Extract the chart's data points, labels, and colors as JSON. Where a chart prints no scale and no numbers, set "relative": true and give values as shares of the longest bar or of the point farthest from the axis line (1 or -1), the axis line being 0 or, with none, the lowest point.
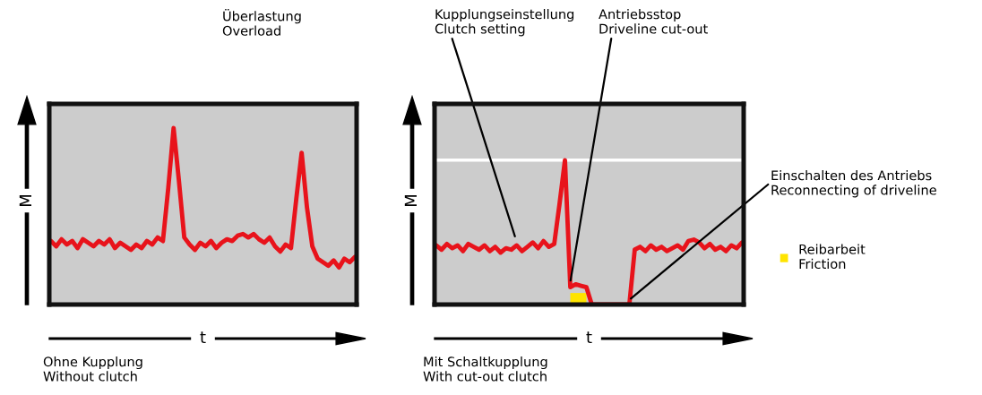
{
  "chart_data": [
    {
      "type": "line",
      "relative": true,
      "xlabel": "t",
      "ylabel": "M",
      "legend": false,
      "categories": [
        null,
        null,
        null,
        null,
        null,
        null,
        null,
        null,
        null,
        null,
        null,
        null,
        null,
        null,
        null,
        null,
        null,
        null,
        null,
        null,
        null,
        null,
        null,
        null,
        null,
        null,
        null,
        null,
        null,
        null,
        null,
        null,
        null,
        null,
        null,
        null,
        null,
        null,
        null,
        null,
        null,
        null,
        null,
        null,
        null,
        null,
        null,
        null,
        null,
        null,
        null,
        null,
        null,
        null,
        null,
        null,
        null,
        null
      ],
      "series": [
        {
          "color": "#e8131b",
          "values": [
            0.36,
            0.33,
            0.37,
            0.34,
            0.36,
            0.32,
            0.37,
            0.35,
            0.33,
            0.36,
            0.34,
            0.37,
            0.32,
            0.35,
            0.33,
            0.31,
            0.34,
            0.32,
            0.36,
            0.34,
            0.38,
            0.36,
            0.66,
            1.0,
            0.7,
            0.38,
            0.34,
            0.31,
            0.35,
            0.33,
            0.36,
            0.32,
            0.35,
            0.37,
            0.36,
            0.39,
            0.4,
            0.38,
            0.4,
            0.37,
            0.35,
            0.38,
            0.33,
            0.3,
            0.34,
            0.32,
            0.6,
            0.86,
            0.55,
            0.33,
            0.26,
            0.24,
            0.22,
            0.25,
            0.21,
            0.26,
            0.24,
            0.27
          ]
        }
      ],
      "annotations": [
        "Überlastung\nOverload",
        "Ohne Kupplung\nWithout clutch"
      ]
    },
    {
      "type": "line",
      "relative": true,
      "xlabel": "t",
      "ylabel": "M",
      "legend": "right",
      "categories": [
        null,
        null,
        null,
        null,
        null,
        null,
        null,
        null,
        null,
        null,
        null,
        null,
        null,
        null,
        null,
        null,
        null,
        null,
        null,
        null,
        null,
        null,
        null,
        null,
        null,
        null,
        null,
        null,
        null,
        null,
        null,
        null,
        null,
        null,
        null,
        null,
        null,
        null,
        null,
        null,
        null,
        null,
        null,
        null,
        null,
        null,
        null,
        null,
        null,
        null,
        null,
        null,
        null,
        null,
        null,
        null,
        null,
        null
      ],
      "series": [
        {
          "type": "area",
          "name": "Reibarbeit\nFriction",
          "color": "#ffe400",
          "values": [
            null,
            null,
            null,
            null,
            null,
            null,
            null,
            null,
            null,
            null,
            null,
            null,
            null,
            null,
            null,
            null,
            null,
            null,
            null,
            null,
            null,
            null,
            null,
            null,
            null,
            0.08,
            0.08,
            0.08,
            0.08,
            null,
            null,
            null,
            null,
            null,
            null,
            null,
            null,
            null,
            null,
            null,
            null,
            null,
            null,
            null,
            null,
            null,
            null,
            null,
            null,
            null,
            null,
            null,
            null,
            null,
            null,
            null,
            null,
            null
          ]
        },
        {
          "color": "#e8131b",
          "values": [
            0.41,
            0.38,
            0.42,
            0.39,
            0.41,
            0.37,
            0.42,
            0.4,
            0.38,
            0.41,
            0.37,
            0.4,
            0.36,
            0.39,
            0.38,
            0.41,
            0.37,
            0.4,
            0.43,
            0.39,
            0.44,
            0.4,
            0.42,
            0.7,
            1.0,
            0.12,
            0.14,
            0.13,
            0.12,
            0.0,
            0.0,
            0.0,
            0.0,
            0.0,
            0.0,
            0.0,
            0.0,
            0.38,
            0.4,
            0.37,
            0.41,
            0.38,
            0.4,
            0.37,
            0.39,
            0.41,
            0.38,
            0.44,
            0.45,
            0.43,
            0.39,
            0.42,
            0.38,
            0.4,
            0.37,
            0.41,
            0.39,
            0.43
          ]
        }
      ],
      "ref_lines": [
        {
          "axis": "y",
          "value": 1.0,
          "color": "#ffffff"
        }
      ],
      "annotations": [
        "Kupplungseinstellung\nClutch setting",
        "Antriebsstop\nDriveline cut-out",
        "Einschalten des Antriebs\nReconnecting of driveline",
        "Mit Schaltkupplung\nWith cut-out clutch"
      ]
    }
  ]
}
